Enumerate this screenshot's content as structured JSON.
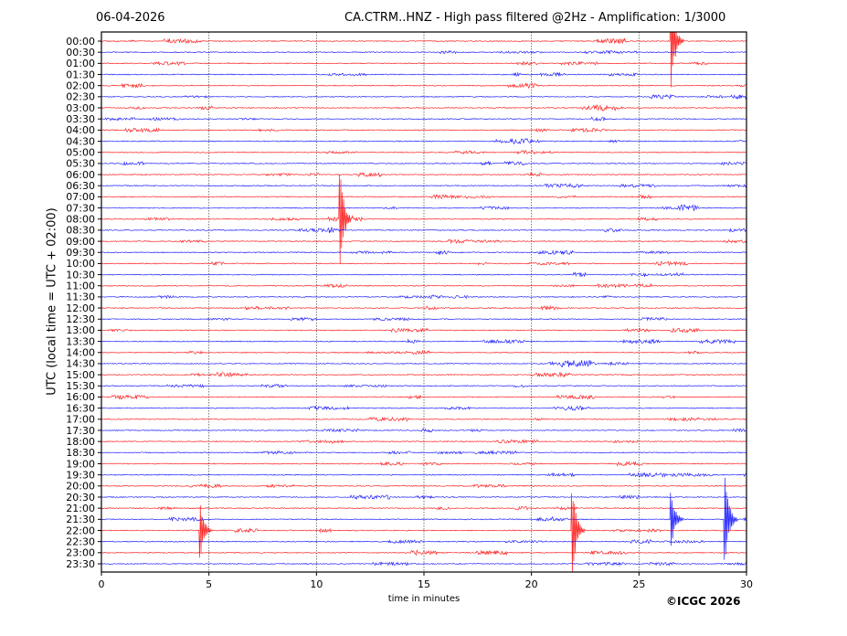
{
  "header": {
    "date": "06-04-2026",
    "title": "CA.CTRM..HNZ - High pass filtered @2Hz - Amplification: 1/3000"
  },
  "footer": {
    "copyright": "©ICGC 2026"
  },
  "chart_data": {
    "type": "line",
    "title": "CA.CTRM..HNZ - High pass filtered @2Hz - Amplification: 1/3000",
    "xlabel": "time in minutes",
    "ylabel": "UTC (local time = UTC + 02:00)",
    "xlim": [
      0,
      30
    ],
    "xticks": [
      0,
      5,
      10,
      15,
      20,
      25,
      30
    ],
    "grid": "vertical dotted",
    "row_labels": [
      "00:00",
      "00:30",
      "01:00",
      "01:30",
      "02:00",
      "02:30",
      "03:00",
      "03:30",
      "04:00",
      "04:30",
      "05:00",
      "05:30",
      "06:00",
      "06:30",
      "07:00",
      "07:30",
      "08:00",
      "08:30",
      "09:00",
      "09:30",
      "10:00",
      "10:30",
      "11:00",
      "11:30",
      "12:00",
      "12:30",
      "13:00",
      "13:30",
      "14:00",
      "14:30",
      "15:00",
      "15:30",
      "16:00",
      "16:30",
      "17:00",
      "17:30",
      "18:00",
      "18:30",
      "19:00",
      "19:30",
      "20:00",
      "20:30",
      "21:00",
      "21:30",
      "22:00",
      "22:30",
      "23:00",
      "23:30"
    ],
    "colors": [
      "#ff0000",
      "#0000ff"
    ],
    "events": [
      {
        "row": "00:00",
        "minute": 26.5,
        "amplitude": 4.7
      },
      {
        "row": "08:00",
        "minute": 11.1,
        "amplitude": 4.8
      },
      {
        "row": "22:00",
        "minute": 4.6,
        "amplitude": 2.8
      },
      {
        "row": "22:00",
        "minute": 21.9,
        "amplitude": 4.9
      },
      {
        "row": "21:30",
        "minute": 26.5,
        "amplitude": 2.7
      },
      {
        "row": "21:30",
        "minute": 29.0,
        "amplitude": 4.9
      }
    ]
  }
}
